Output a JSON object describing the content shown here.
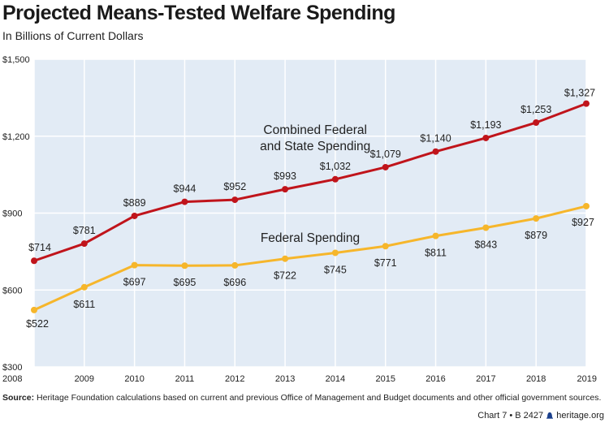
{
  "title": "Projected Means-Tested Welfare Spending",
  "subtitle": "In Billions of Current Dollars",
  "source_label": "Source:",
  "source_text": "Heritage Foundation calculations based on current and previous Office of Management and Budget documents and other official government sources.",
  "credit": {
    "chart": "Chart 7 • B 2427",
    "site": "heritage.org"
  },
  "chart_data": {
    "type": "line",
    "x": [
      2008,
      2009,
      2010,
      2011,
      2012,
      2013,
      2014,
      2015,
      2016,
      2017,
      2018,
      2019
    ],
    "ylim": [
      300,
      1500
    ],
    "yticks": [
      300,
      600,
      900,
      1200,
      1500
    ],
    "ytick_labels": [
      "$300",
      "$600",
      "$900",
      "$1,200",
      "$1,500"
    ],
    "grid": true,
    "series": [
      {
        "name": "Combined Federal and State Spending",
        "name_lines": [
          "Combined Federal",
          "and State Spending"
        ],
        "color": "#c0141b",
        "values": [
          714,
          781,
          889,
          944,
          952,
          993,
          1032,
          1079,
          1140,
          1193,
          1253,
          1327
        ],
        "labels": [
          "$714",
          "$781",
          "$889",
          "$944",
          "$952",
          "$993",
          "$1,032",
          "$1,079",
          "$1,140",
          "$1,193",
          "$1,253",
          "$1,327"
        ]
      },
      {
        "name": "Federal Spending",
        "name_lines": [
          "Federal Spending"
        ],
        "color": "#f6b62b",
        "values": [
          522,
          611,
          697,
          695,
          696,
          722,
          745,
          771,
          811,
          843,
          879,
          927
        ],
        "labels": [
          "$522",
          "$611",
          "$697",
          "$695",
          "$696",
          "$722",
          "$745",
          "$771",
          "$811",
          "$843",
          "$879",
          "$927"
        ]
      }
    ],
    "plot_background": "#e2ebf5"
  }
}
